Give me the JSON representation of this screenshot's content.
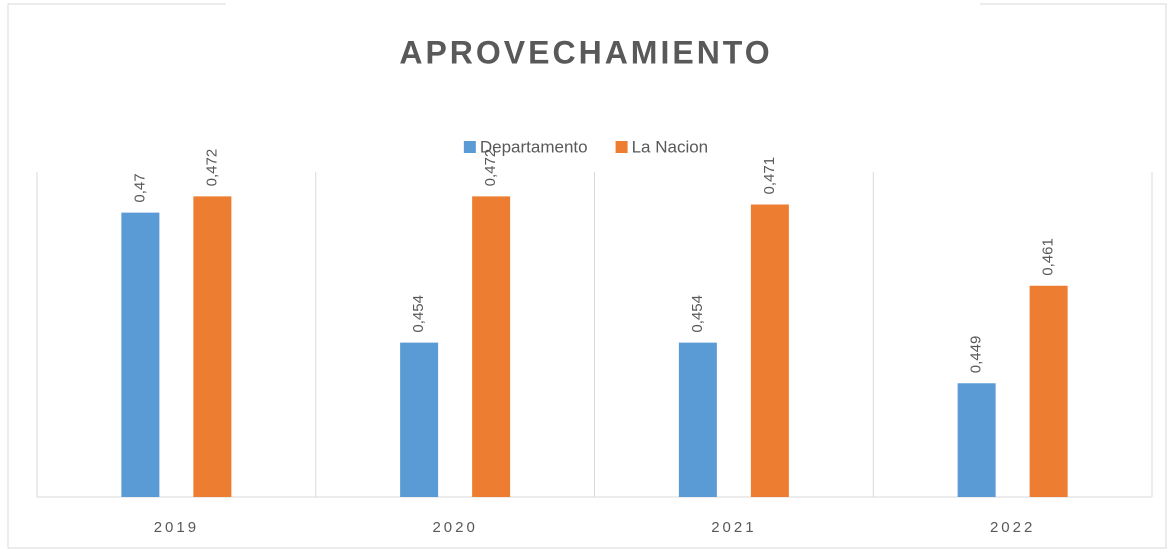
{
  "chart_data": {
    "type": "bar",
    "title": "APROVECHAMIENTO",
    "categories": [
      "2019",
      "2020",
      "2021",
      "2022"
    ],
    "series": [
      {
        "name": "Departamento",
        "color": "#5b9bd5",
        "values": [
          0.47,
          0.454,
          0.454,
          0.449
        ],
        "value_labels": [
          "0,47",
          "0,454",
          "0,454",
          "0,449"
        ]
      },
      {
        "name": "La Nacion",
        "color": "#ed7d31",
        "values": [
          0.472,
          0.472,
          0.471,
          0.461
        ],
        "value_labels": [
          "0,472",
          "0,472",
          "0,471",
          "0,461"
        ]
      }
    ],
    "ylim": [
      0.435,
      0.475
    ],
    "legend": "top"
  }
}
